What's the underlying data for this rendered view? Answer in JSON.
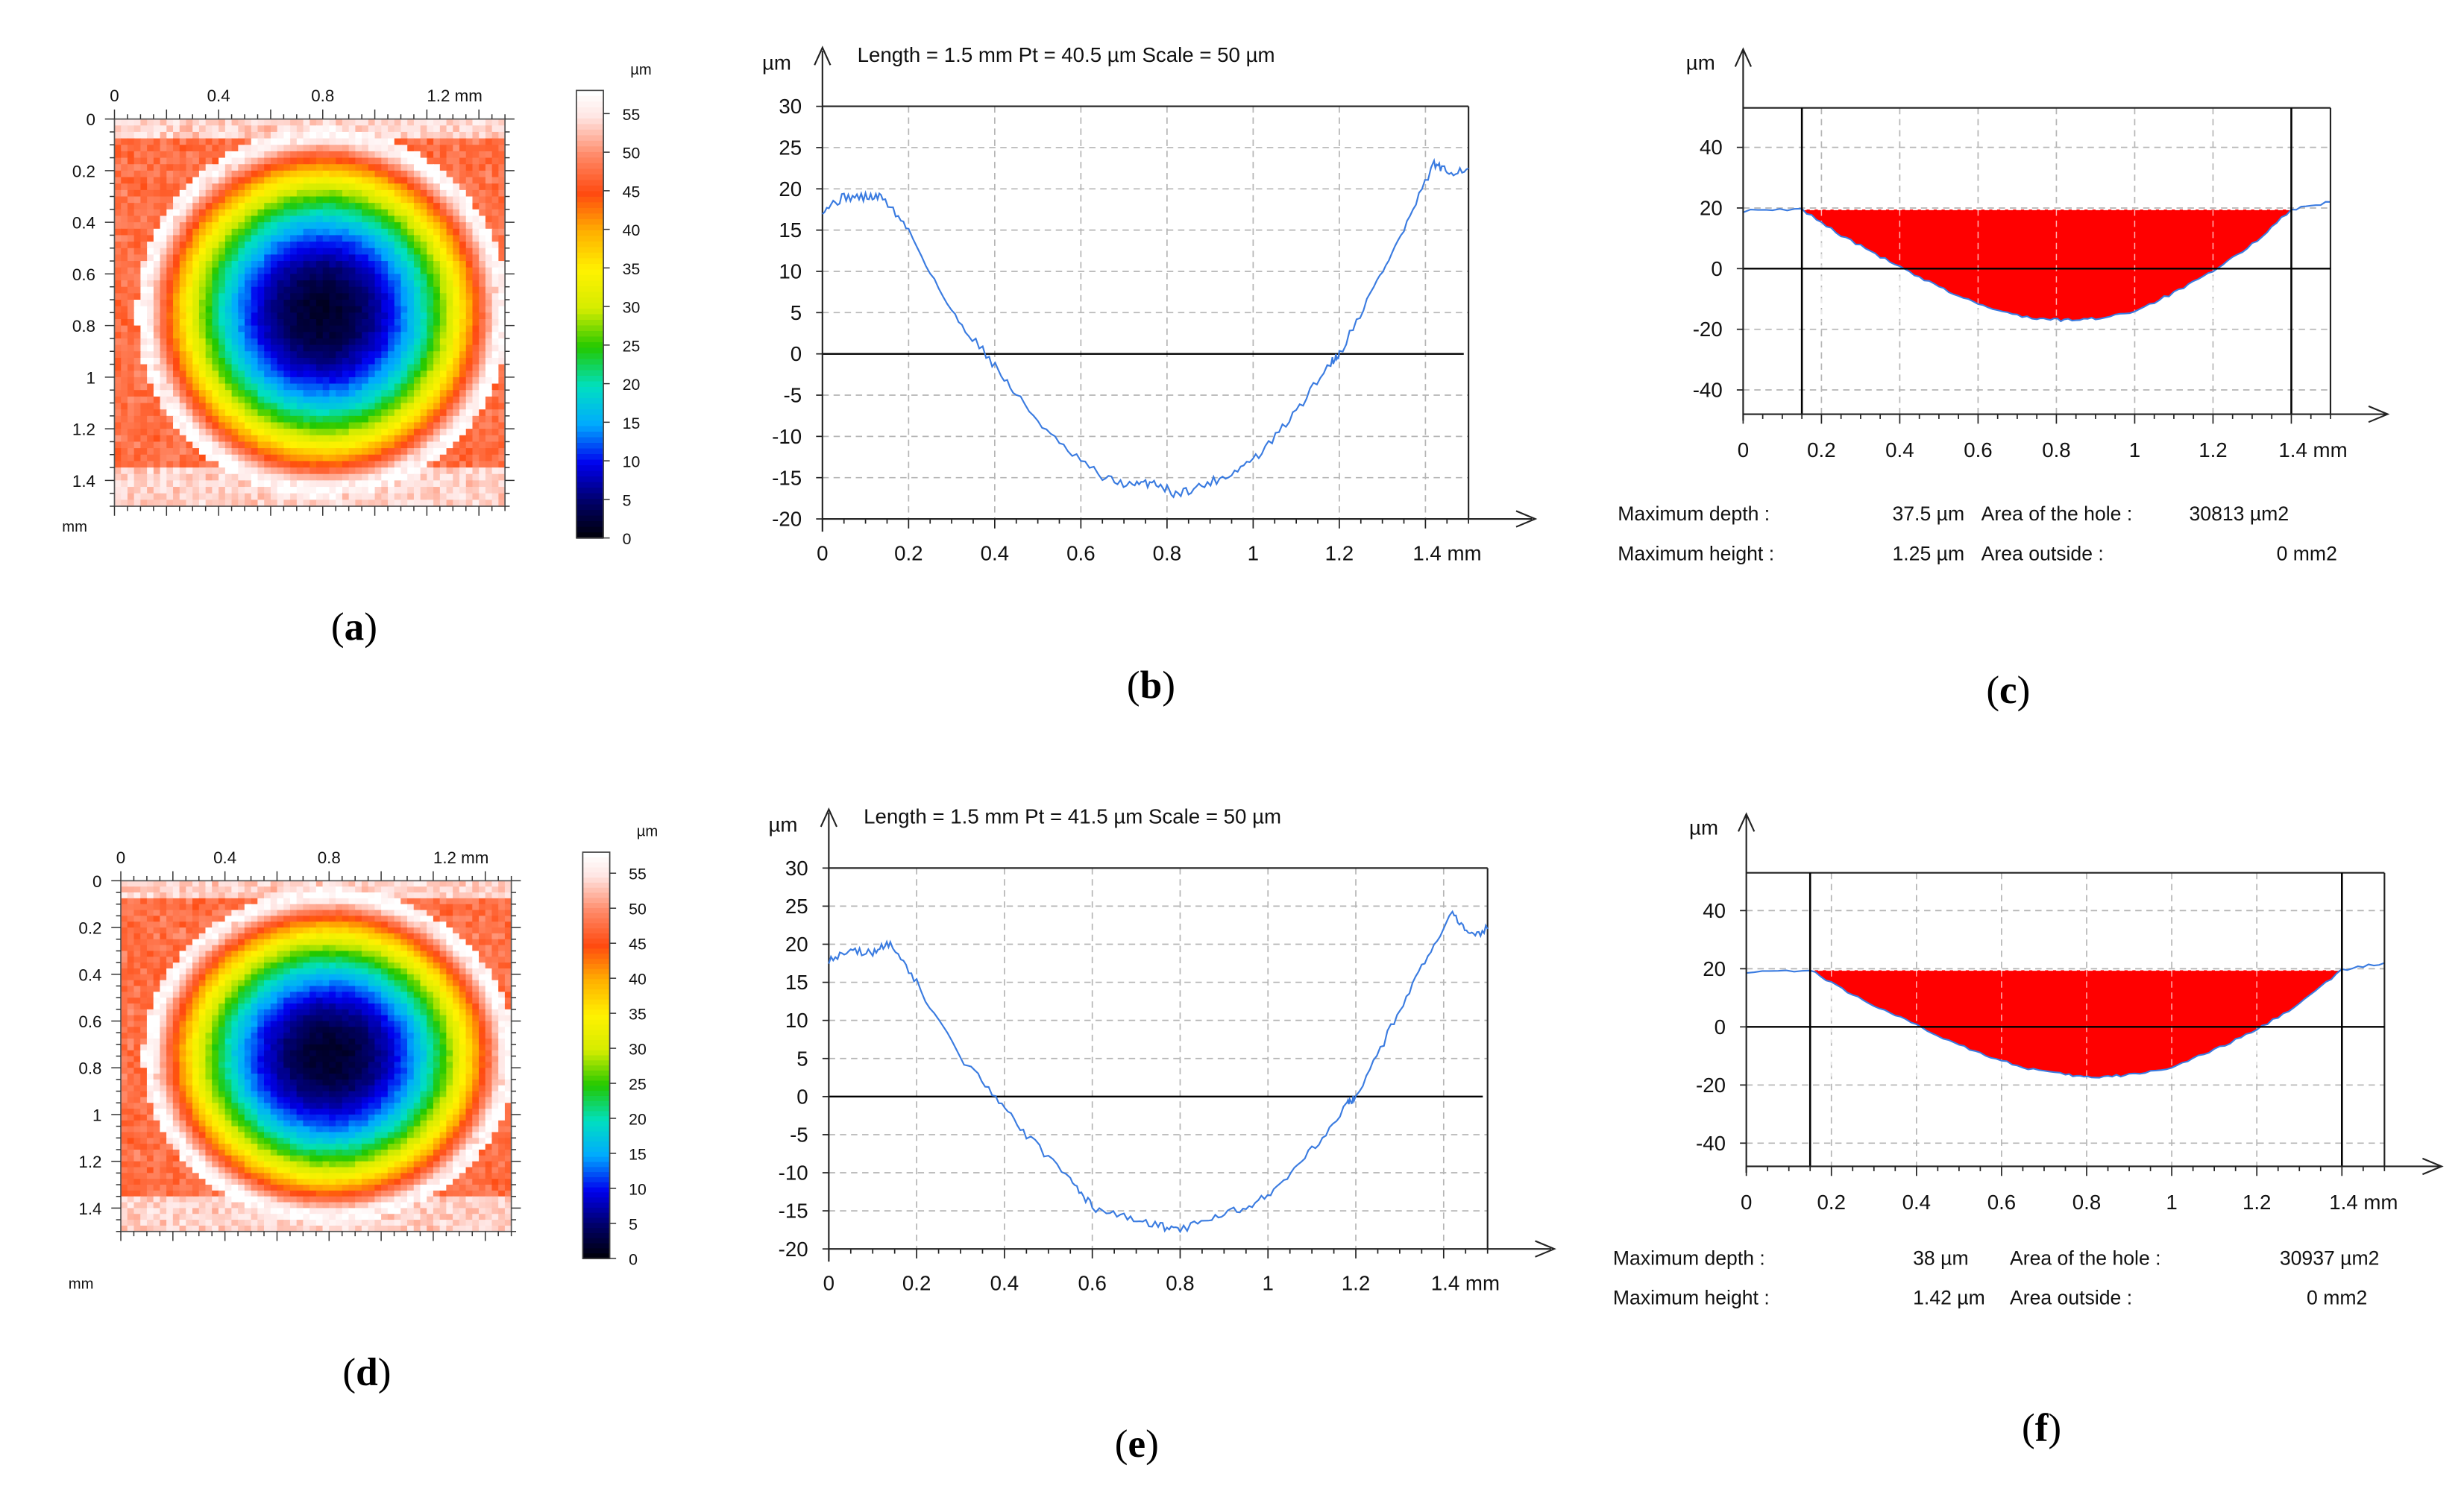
{
  "figure": {
    "rows": [
      {
        "map": {
          "panel_label": "a",
          "x_ticks": [
            "0",
            "0.4",
            "0.8",
            "1.2 mm"
          ],
          "y_ticks": [
            "0",
            "0.2",
            "0.4",
            "0.6",
            "0.8",
            "1",
            "1.2",
            "1.4"
          ],
          "y_unit": "mm",
          "colorbar_unit": "µm",
          "colorbar_ticks": [
            "55",
            "50",
            "45",
            "40",
            "35",
            "30",
            "25",
            "20",
            "15",
            "10",
            "5",
            "0"
          ]
        },
        "profile": {
          "panel_label": "b",
          "y_unit": "µm",
          "header": "Length = 1.5 mm  Pt = 40.5 µm  Scale = 50 µm",
          "x_ticks": [
            "0",
            "0.2",
            "0.4",
            "0.6",
            "0.8",
            "1",
            "1.2",
            "1.4 mm"
          ],
          "y_ticks": [
            "30",
            "25",
            "20",
            "15",
            "10",
            "5",
            "0",
            "-5",
            "-10",
            "-15",
            "-20"
          ]
        },
        "hole": {
          "panel_label": "c",
          "y_unit": "µm",
          "x_ticks": [
            "0",
            "0.2",
            "0.4",
            "0.6",
            "0.8",
            "1",
            "1.2",
            "1.4 mm"
          ],
          "y_ticks": [
            "40",
            "20",
            "0",
            "-20",
            "-40"
          ],
          "stats": {
            "max_depth_label": "Maximum depth :",
            "max_depth_value": "37.5 µm",
            "area_hole_label": "Area of the hole :",
            "area_hole_value": "30813 µm2",
            "max_height_label": "Maximum height :",
            "max_height_value": "1.25 µm",
            "area_outside_label": "Area outside :",
            "area_outside_value": "0 mm2"
          }
        }
      },
      {
        "map": {
          "panel_label": "d",
          "x_ticks": [
            "0",
            "0.4",
            "0.8",
            "1.2 mm"
          ],
          "y_ticks": [
            "0",
            "0.2",
            "0.4",
            "0.6",
            "0.8",
            "1",
            "1.2",
            "1.4"
          ],
          "y_unit": "mm",
          "colorbar_unit": "µm",
          "colorbar_ticks": [
            "55",
            "50",
            "45",
            "40",
            "35",
            "30",
            "25",
            "20",
            "15",
            "10",
            "5",
            "0"
          ]
        },
        "profile": {
          "panel_label": "e",
          "y_unit": "µm",
          "header": "Length = 1.5 mm  Pt = 41.5 µm  Scale = 50 µm",
          "x_ticks": [
            "0",
            "0.2",
            "0.4",
            "0.6",
            "0.8",
            "1",
            "1.2",
            "1.4 mm"
          ],
          "y_ticks": [
            "30",
            "25",
            "20",
            "15",
            "10",
            "5",
            "0",
            "-5",
            "-10",
            "-15",
            "-20"
          ]
        },
        "hole": {
          "panel_label": "f",
          "y_unit": "µm",
          "x_ticks": [
            "0",
            "0.2",
            "0.4",
            "0.6",
            "0.8",
            "1",
            "1.2",
            "1.4 mm"
          ],
          "y_ticks": [
            "40",
            "20",
            "0",
            "-20",
            "-40"
          ],
          "stats": {
            "max_depth_label": "Maximum depth :",
            "max_depth_value": "38 µm",
            "area_hole_label": "Area of the hole :",
            "area_hole_value": "30937 µm2",
            "max_height_label": "Maximum height :",
            "max_height_value": "1.42 µm",
            "area_outside_label": "Area outside :",
            "area_outside_value": "0 mm2"
          }
        }
      }
    ]
  },
  "chart_data": [
    {
      "type": "heatmap",
      "panel": "a",
      "title": "",
      "xlabel": "mm",
      "ylabel": "mm",
      "xlim": [
        0,
        1.5
      ],
      "ylim": [
        0,
        1.5
      ],
      "center": [
        0.8,
        0.75
      ],
      "colorbar": {
        "unit": "µm",
        "range": [
          0,
          58
        ]
      },
      "colormap": [
        {
          "value": 0,
          "color": "#000000"
        },
        {
          "value": 5,
          "color": "#000066"
        },
        {
          "value": 10,
          "color": "#0000ee"
        },
        {
          "value": 15,
          "color": "#00aaff"
        },
        {
          "value": 20,
          "color": "#00e0c0"
        },
        {
          "value": 25,
          "color": "#22c800"
        },
        {
          "value": 30,
          "color": "#d4ec00"
        },
        {
          "value": 35,
          "color": "#fff200"
        },
        {
          "value": 40,
          "color": "#ffb000"
        },
        {
          "value": 45,
          "color": "#ff4a10"
        },
        {
          "value": 50,
          "color": "#ff8b6a"
        },
        {
          "value": 55,
          "color": "#ffe6e4"
        },
        {
          "value": 58,
          "color": "#ffffff"
        }
      ],
      "profile_fn": {
        "max_um": 58,
        "min_um": 2,
        "radius_mm": 0.68
      }
    },
    {
      "type": "line",
      "panel": "b",
      "title": "Length = 1.5 mm  Pt = 40.5 µm  Scale = 50 µm",
      "xlabel": "mm",
      "ylabel": "µm",
      "xlim": [
        0,
        1.5
      ],
      "ylim": [
        -20,
        30
      ],
      "grid": true,
      "series": [
        {
          "name": "profile",
          "color": "#3a7be0",
          "x": [
            0,
            0.05,
            0.1,
            0.14,
            0.2,
            0.3,
            0.38,
            0.45,
            0.55,
            0.65,
            0.72,
            0.77,
            0.82,
            0.88,
            0.95,
            1.02,
            1.1,
            1.18,
            1.2,
            1.28,
            1.35,
            1.42,
            1.45,
            1.5
          ],
          "y": [
            17.5,
            19,
            19,
            19,
            15,
            5,
            0,
            -5,
            -11,
            -15,
            -16,
            -15.5,
            -17,
            -16,
            -14.5,
            -12,
            -7,
            -1,
            0,
            8,
            15,
            23,
            22,
            22.5
          ]
        }
      ]
    },
    {
      "type": "area",
      "panel": "c",
      "xlabel": "mm",
      "ylabel": "µm",
      "xlim": [
        0,
        1.5
      ],
      "ylim": [
        -48,
        53
      ],
      "grid": true,
      "hole_bounds": [
        0.15,
        1.4
      ],
      "hole_top": 19.5,
      "series": [
        {
          "name": "profile",
          "color": "#3a7be0",
          "fill": "#ff0000",
          "x": [
            0,
            0.15,
            0.25,
            0.35,
            0.45,
            0.55,
            0.65,
            0.75,
            0.82,
            0.9,
            1.0,
            1.1,
            1.2,
            1.3,
            1.4,
            1.5
          ],
          "y": [
            19,
            19.5,
            11,
            4,
            -3,
            -9,
            -14,
            -16.5,
            -17,
            -16.5,
            -14,
            -8,
            -1,
            8,
            19.5,
            22
          ]
        }
      ]
    },
    {
      "type": "heatmap",
      "panel": "d",
      "title": "",
      "xlabel": "mm",
      "ylabel": "mm",
      "xlim": [
        0,
        1.5
      ],
      "ylim": [
        0,
        1.5
      ],
      "center": [
        0.8,
        0.75
      ],
      "colorbar": {
        "unit": "µm",
        "range": [
          0,
          58
        ]
      },
      "colormap": [
        {
          "value": 0,
          "color": "#000000"
        },
        {
          "value": 5,
          "color": "#000066"
        },
        {
          "value": 10,
          "color": "#0000ee"
        },
        {
          "value": 15,
          "color": "#00aaff"
        },
        {
          "value": 20,
          "color": "#00e0c0"
        },
        {
          "value": 25,
          "color": "#22c800"
        },
        {
          "value": 30,
          "color": "#d4ec00"
        },
        {
          "value": 35,
          "color": "#fff200"
        },
        {
          "value": 40,
          "color": "#ffb000"
        },
        {
          "value": 45,
          "color": "#ff4a10"
        },
        {
          "value": 50,
          "color": "#ff8b6a"
        },
        {
          "value": 55,
          "color": "#ffe6e4"
        },
        {
          "value": 58,
          "color": "#ffffff"
        }
      ],
      "profile_fn": {
        "max_um": 58,
        "min_um": 2,
        "radius_mm": 0.68
      }
    },
    {
      "type": "line",
      "panel": "e",
      "title": "Length = 1.5 mm  Pt = 41.5 µm  Scale = 50 µm",
      "xlabel": "mm",
      "ylabel": "µm",
      "xlim": [
        0,
        1.5
      ],
      "ylim": [
        -20,
        30
      ],
      "grid": true,
      "series": [
        {
          "name": "profile",
          "color": "#3a7be0",
          "x": [
            0,
            0.05,
            0.1,
            0.14,
            0.2,
            0.3,
            0.38,
            0.45,
            0.55,
            0.6,
            0.68,
            0.75,
            0.8,
            0.88,
            0.95,
            1.02,
            1.1,
            1.18,
            1.2,
            1.28,
            1.35,
            1.42,
            1.46,
            1.5
          ],
          "y": [
            18,
            19,
            19,
            20,
            15,
            5,
            0,
            -5,
            -11,
            -14.5,
            -16,
            -17,
            -17.5,
            -16,
            -14.5,
            -12,
            -7,
            -1,
            0,
            9,
            17,
            24,
            21,
            22
          ]
        }
      ]
    },
    {
      "type": "area",
      "panel": "f",
      "xlabel": "mm",
      "ylabel": "µm",
      "xlim": [
        0,
        1.5
      ],
      "ylim": [
        -48,
        53
      ],
      "grid": true,
      "hole_bounds": [
        0.15,
        1.4
      ],
      "hole_top": 19.5,
      "series": [
        {
          "name": "profile",
          "color": "#3a7be0",
          "fill": "#ff0000",
          "x": [
            0,
            0.15,
            0.25,
            0.35,
            0.45,
            0.55,
            0.65,
            0.75,
            0.82,
            0.9,
            1.0,
            1.1,
            1.2,
            1.3,
            1.4,
            1.5
          ],
          "y": [
            19,
            19.5,
            11,
            4,
            -3,
            -9,
            -14,
            -16.5,
            -17.5,
            -16.5,
            -14,
            -8,
            -1,
            8,
            19.5,
            22
          ]
        }
      ]
    }
  ]
}
